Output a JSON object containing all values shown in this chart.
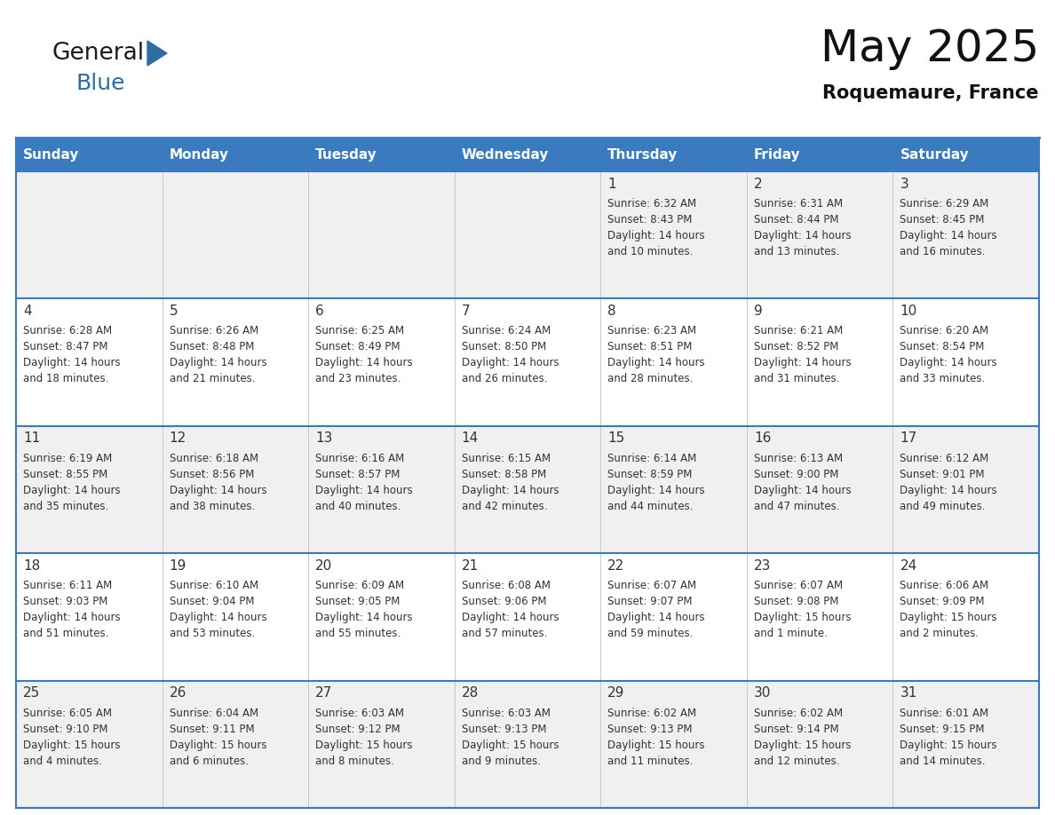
{
  "title": "May 2025",
  "subtitle": "Roquemaure, France",
  "header_bg": "#3a7bbf",
  "header_text": "#FFFFFF",
  "cell_bg_odd": "#F0F0F0",
  "cell_bg_even": "#FFFFFF",
  "row_border_color": "#3a7bbf",
  "col_border_color": "#c8c8c8",
  "text_color": "#333333",
  "days_of_week": [
    "Sunday",
    "Monday",
    "Tuesday",
    "Wednesday",
    "Thursday",
    "Friday",
    "Saturday"
  ],
  "weeks": [
    [
      {
        "day": "",
        "info": ""
      },
      {
        "day": "",
        "info": ""
      },
      {
        "day": "",
        "info": ""
      },
      {
        "day": "",
        "info": ""
      },
      {
        "day": "1",
        "info": "Sunrise: 6:32 AM\nSunset: 8:43 PM\nDaylight: 14 hours\nand 10 minutes."
      },
      {
        "day": "2",
        "info": "Sunrise: 6:31 AM\nSunset: 8:44 PM\nDaylight: 14 hours\nand 13 minutes."
      },
      {
        "day": "3",
        "info": "Sunrise: 6:29 AM\nSunset: 8:45 PM\nDaylight: 14 hours\nand 16 minutes."
      }
    ],
    [
      {
        "day": "4",
        "info": "Sunrise: 6:28 AM\nSunset: 8:47 PM\nDaylight: 14 hours\nand 18 minutes."
      },
      {
        "day": "5",
        "info": "Sunrise: 6:26 AM\nSunset: 8:48 PM\nDaylight: 14 hours\nand 21 minutes."
      },
      {
        "day": "6",
        "info": "Sunrise: 6:25 AM\nSunset: 8:49 PM\nDaylight: 14 hours\nand 23 minutes."
      },
      {
        "day": "7",
        "info": "Sunrise: 6:24 AM\nSunset: 8:50 PM\nDaylight: 14 hours\nand 26 minutes."
      },
      {
        "day": "8",
        "info": "Sunrise: 6:23 AM\nSunset: 8:51 PM\nDaylight: 14 hours\nand 28 minutes."
      },
      {
        "day": "9",
        "info": "Sunrise: 6:21 AM\nSunset: 8:52 PM\nDaylight: 14 hours\nand 31 minutes."
      },
      {
        "day": "10",
        "info": "Sunrise: 6:20 AM\nSunset: 8:54 PM\nDaylight: 14 hours\nand 33 minutes."
      }
    ],
    [
      {
        "day": "11",
        "info": "Sunrise: 6:19 AM\nSunset: 8:55 PM\nDaylight: 14 hours\nand 35 minutes."
      },
      {
        "day": "12",
        "info": "Sunrise: 6:18 AM\nSunset: 8:56 PM\nDaylight: 14 hours\nand 38 minutes."
      },
      {
        "day": "13",
        "info": "Sunrise: 6:16 AM\nSunset: 8:57 PM\nDaylight: 14 hours\nand 40 minutes."
      },
      {
        "day": "14",
        "info": "Sunrise: 6:15 AM\nSunset: 8:58 PM\nDaylight: 14 hours\nand 42 minutes."
      },
      {
        "day": "15",
        "info": "Sunrise: 6:14 AM\nSunset: 8:59 PM\nDaylight: 14 hours\nand 44 minutes."
      },
      {
        "day": "16",
        "info": "Sunrise: 6:13 AM\nSunset: 9:00 PM\nDaylight: 14 hours\nand 47 minutes."
      },
      {
        "day": "17",
        "info": "Sunrise: 6:12 AM\nSunset: 9:01 PM\nDaylight: 14 hours\nand 49 minutes."
      }
    ],
    [
      {
        "day": "18",
        "info": "Sunrise: 6:11 AM\nSunset: 9:03 PM\nDaylight: 14 hours\nand 51 minutes."
      },
      {
        "day": "19",
        "info": "Sunrise: 6:10 AM\nSunset: 9:04 PM\nDaylight: 14 hours\nand 53 minutes."
      },
      {
        "day": "20",
        "info": "Sunrise: 6:09 AM\nSunset: 9:05 PM\nDaylight: 14 hours\nand 55 minutes."
      },
      {
        "day": "21",
        "info": "Sunrise: 6:08 AM\nSunset: 9:06 PM\nDaylight: 14 hours\nand 57 minutes."
      },
      {
        "day": "22",
        "info": "Sunrise: 6:07 AM\nSunset: 9:07 PM\nDaylight: 14 hours\nand 59 minutes."
      },
      {
        "day": "23",
        "info": "Sunrise: 6:07 AM\nSunset: 9:08 PM\nDaylight: 15 hours\nand 1 minute."
      },
      {
        "day": "24",
        "info": "Sunrise: 6:06 AM\nSunset: 9:09 PM\nDaylight: 15 hours\nand 2 minutes."
      }
    ],
    [
      {
        "day": "25",
        "info": "Sunrise: 6:05 AM\nSunset: 9:10 PM\nDaylight: 15 hours\nand 4 minutes."
      },
      {
        "day": "26",
        "info": "Sunrise: 6:04 AM\nSunset: 9:11 PM\nDaylight: 15 hours\nand 6 minutes."
      },
      {
        "day": "27",
        "info": "Sunrise: 6:03 AM\nSunset: 9:12 PM\nDaylight: 15 hours\nand 8 minutes."
      },
      {
        "day": "28",
        "info": "Sunrise: 6:03 AM\nSunset: 9:13 PM\nDaylight: 15 hours\nand 9 minutes."
      },
      {
        "day": "29",
        "info": "Sunrise: 6:02 AM\nSunset: 9:13 PM\nDaylight: 15 hours\nand 11 minutes."
      },
      {
        "day": "30",
        "info": "Sunrise: 6:02 AM\nSunset: 9:14 PM\nDaylight: 15 hours\nand 12 minutes."
      },
      {
        "day": "31",
        "info": "Sunrise: 6:01 AM\nSunset: 9:15 PM\nDaylight: 15 hours\nand 14 minutes."
      }
    ]
  ],
  "logo_text_general": "General",
  "logo_text_blue": "Blue",
  "logo_color_general": "#1a1a1a",
  "logo_color_blue": "#2E6DA4",
  "logo_triangle_color": "#2E6DA4",
  "title_fontsize": 36,
  "subtitle_fontsize": 15,
  "header_fontsize": 11,
  "day_num_fontsize": 11,
  "info_fontsize": 8.5
}
